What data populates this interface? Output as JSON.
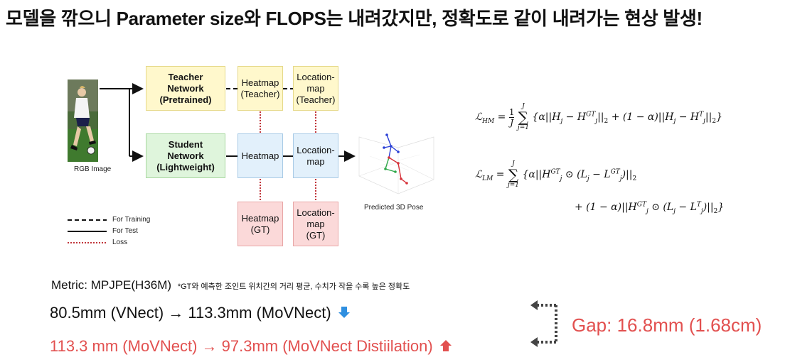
{
  "title": "모델을 깎으니 Parameter size와 FLOPS는 내려갔지만, 정확도로 같이 내려가는 현상 발생!",
  "diagram": {
    "rgb_label": "RGB Image",
    "teacher_network": [
      "Teacher",
      "Network",
      "(Pretrained)"
    ],
    "student_network": [
      "Student",
      "Network",
      "(Lightweight)"
    ],
    "heatmap_teacher": [
      "Heatmap",
      "(Teacher)"
    ],
    "location_teacher": [
      "Location-",
      "map",
      "(Teacher)"
    ],
    "heatmap_student": "Heatmap",
    "location_student": [
      "Location-",
      "map"
    ],
    "heatmap_gt": [
      "Heatmap",
      "(GT)"
    ],
    "location_gt": [
      "Location-",
      "map",
      "(GT)"
    ],
    "pose_label": "Predicted 3D Pose",
    "legend": {
      "training": "For Training",
      "test": "For Test",
      "loss": "Loss"
    }
  },
  "metric": {
    "label": "Metric: MPJPE(H36M)",
    "note": "*GT와 예측한 조인트 위치간의 거리 평균, 수치가 작을 수록 높은 정확도"
  },
  "comparison": {
    "line1": "80.5mm (VNect) → 113.3mm (MoVNect)",
    "line2": "113.3 mm (MoVNect) → 97.3mm (MoVNect Distiilation)",
    "gap": "Gap: 16.8mm (1.68cm)"
  },
  "colors": {
    "accent_red": "#e2504f",
    "arrow_blue": "#2f8fe0"
  }
}
